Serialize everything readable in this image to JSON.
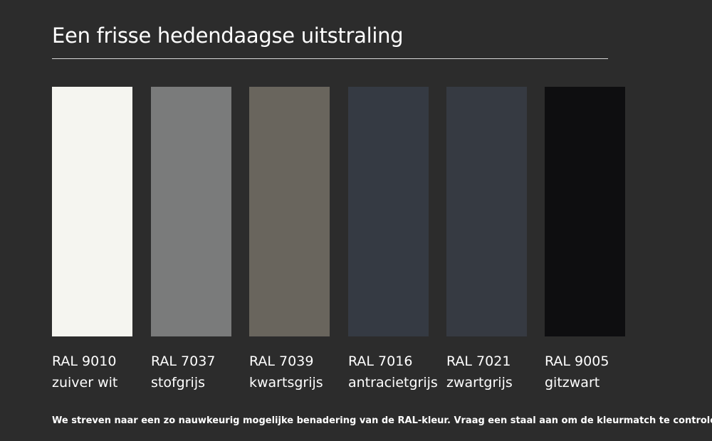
{
  "page": {
    "title": "Een frisse hedendaagse uitstraling",
    "note": "We streven naar een zo nauwkeurig mogelijke benadering van de RAL-kleur. Vraag een staal aan om de kleurmatch te controleren."
  },
  "colors": [
    {
      "code": "RAL 9010",
      "name": "zuiver wit",
      "hex": "#f5f5f0"
    },
    {
      "code": "RAL 7037",
      "name": "stofgrijs",
      "hex": "#7a7b7b"
    },
    {
      "code": "RAL 7039",
      "name": "kwartsgrijs",
      "hex": "#69655d"
    },
    {
      "code": "RAL 7016",
      "name": "antracietgrijs",
      "hex": "#353a43"
    },
    {
      "code": "RAL 7021",
      "name": "zwartgrijs",
      "hex": "#363a42"
    },
    {
      "code": "RAL 9005",
      "name": "gitzwart",
      "hex": "#0e0e10"
    }
  ]
}
